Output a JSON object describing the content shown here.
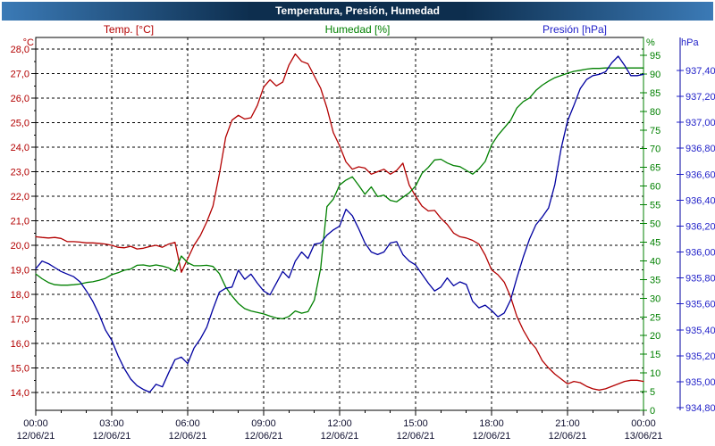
{
  "window": {
    "title": "Temperatura, Presión, Humedad"
  },
  "legend": {
    "temp": "Temp. [°C]",
    "humidity": "Humedad [%]",
    "pressure": "Presión [hPa]"
  },
  "colors": {
    "temp": "#b30000",
    "humidity": "#008000",
    "pressure": "#0000a0",
    "titlebar_edge": "#3b7ab6",
    "titlebar_center": "#0d2e4e",
    "window_border": "#2e669f",
    "grid": "#000000"
  },
  "chart_data": {
    "type": "line",
    "title": "Temperatura, Presión, Humedad",
    "grid": {
      "horizontal": "temperature 1°C steps",
      "vertical": "every 3 hours",
      "style": "dashed"
    },
    "x_axis": {
      "start_hour": 0,
      "end_hour": 24,
      "major_tick_every_hours": 3,
      "minor_tick_every_hours": 1,
      "ticks": [
        {
          "time": "00:00",
          "date": "12/06/21"
        },
        {
          "time": "03:00",
          "date": "12/06/21"
        },
        {
          "time": "06:00",
          "date": "12/06/21"
        },
        {
          "time": "09:00",
          "date": "12/06/21"
        },
        {
          "time": "12:00",
          "date": "12/06/21"
        },
        {
          "time": "15:00",
          "date": "12/06/21"
        },
        {
          "time": "18:00",
          "date": "12/06/21"
        },
        {
          "time": "21:00",
          "date": "12/06/21"
        },
        {
          "time": "00:00",
          "date": "13/06/21"
        }
      ]
    },
    "y_axes": [
      {
        "id": "temp",
        "unit": "°C",
        "side": "left",
        "color": "#b30000",
        "decimals": 1,
        "decimal_separator": ",",
        "ticks": [
          28,
          27,
          26,
          25,
          24,
          23,
          22,
          21,
          20,
          19,
          18,
          17,
          16,
          15,
          14
        ],
        "minor_tick_step": 0.5
      },
      {
        "id": "humidity",
        "unit": "%",
        "side": "right",
        "color": "#008000",
        "decimals": 0,
        "decimal_separator": ",",
        "ticks": [
          95,
          90,
          85,
          80,
          75,
          70,
          65,
          60,
          55,
          50,
          45,
          40,
          35,
          30,
          25,
          20,
          15,
          10,
          5,
          0
        ]
      },
      {
        "id": "pressure",
        "unit": "hPa",
        "side": "right-outer",
        "color": "#1f1fc8",
        "decimals": 2,
        "decimal_separator": ",",
        "ticks": [
          937.4,
          937.2,
          937.0,
          936.8,
          936.6,
          936.4,
          936.2,
          936.0,
          935.8,
          935.6,
          935.4,
          935.2,
          935.0,
          934.8
        ]
      }
    ],
    "series": [
      {
        "name": "Temp. [°C]",
        "axis": "temp",
        "color": "#b30000",
        "x_start_hour": 0,
        "x_step_hours": 0.25,
        "values": [
          20.35,
          20.32,
          20.3,
          20.32,
          20.28,
          20.15,
          20.15,
          20.13,
          20.1,
          20.1,
          20.08,
          20.05,
          20.0,
          19.92,
          19.9,
          19.96,
          19.85,
          19.88,
          19.95,
          20.0,
          19.92,
          20.05,
          20.12,
          18.9,
          19.45,
          20.0,
          20.4,
          20.95,
          21.6,
          22.9,
          24.4,
          25.1,
          25.3,
          25.15,
          25.2,
          25.7,
          26.45,
          26.75,
          26.5,
          26.65,
          27.35,
          27.8,
          27.5,
          27.4,
          26.9,
          26.4,
          25.6,
          24.6,
          24.05,
          23.4,
          23.1,
          23.2,
          23.15,
          22.9,
          23.0,
          23.1,
          22.9,
          23.05,
          23.35,
          22.45,
          22.0,
          21.6,
          21.4,
          21.42,
          21.1,
          20.85,
          20.5,
          20.35,
          20.3,
          20.2,
          20.05,
          19.6,
          19.0,
          18.8,
          18.5,
          17.9,
          17.1,
          16.55,
          16.1,
          15.8,
          15.3,
          15.0,
          14.75,
          14.55,
          14.35,
          14.45,
          14.4,
          14.25,
          14.15,
          14.1,
          14.15,
          14.25,
          14.35,
          14.45,
          14.5,
          14.5,
          14.45
        ]
      },
      {
        "name": "Humedad [%]",
        "axis": "humidity",
        "color": "#008000",
        "x_start_hour": 0,
        "x_step_hours": 0.25,
        "values": [
          36.5,
          35.2,
          34.2,
          33.6,
          33.5,
          33.5,
          33.6,
          33.8,
          34.2,
          34.4,
          34.8,
          35.3,
          36.3,
          36.8,
          37.5,
          37.8,
          38.8,
          38.9,
          38.6,
          38.9,
          38.6,
          38.1,
          37.2,
          41.3,
          39.5,
          38.7,
          38.7,
          38.8,
          38.5,
          36.6,
          33.0,
          30.6,
          28.6,
          27.2,
          26.6,
          26.2,
          25.8,
          25.2,
          24.7,
          24.5,
          25.1,
          26.6,
          26.0,
          26.4,
          29.5,
          38.0,
          54.5,
          56.5,
          60.3,
          61.6,
          62.5,
          60.2,
          57.8,
          59.8,
          57.2,
          57.6,
          56.2,
          55.8,
          57.0,
          58.2,
          60.0,
          63.4,
          65.0,
          67.0,
          67.2,
          66.2,
          65.5,
          65.2,
          64.2,
          63.2,
          64.6,
          66.6,
          71.0,
          73.6,
          75.6,
          77.6,
          80.9,
          82.6,
          83.6,
          85.6,
          87.0,
          88.1,
          89.0,
          89.6,
          90.2,
          90.7,
          91.0,
          91.3,
          91.5,
          91.5,
          91.6,
          91.6,
          91.6,
          91.6,
          91.6,
          91.6,
          91.6
        ]
      },
      {
        "name": "Presión [hPa]",
        "axis": "pressure",
        "color": "#0000a0",
        "x_start_hour": 0,
        "x_step_hours": 0.25,
        "values": [
          935.87,
          935.93,
          935.91,
          935.88,
          935.85,
          935.83,
          935.81,
          935.77,
          935.7,
          935.62,
          935.52,
          935.4,
          935.32,
          935.2,
          935.1,
          935.02,
          934.97,
          934.94,
          934.92,
          934.98,
          934.96,
          935.07,
          935.17,
          935.19,
          935.14,
          935.26,
          935.33,
          935.42,
          935.56,
          935.69,
          935.72,
          935.73,
          935.86,
          935.79,
          935.83,
          935.76,
          935.7,
          935.67,
          935.76,
          935.85,
          935.8,
          935.93,
          936.0,
          935.95,
          936.06,
          936.07,
          936.13,
          936.17,
          936.2,
          936.33,
          936.28,
          936.18,
          936.07,
          936.0,
          935.98,
          936.0,
          936.07,
          936.08,
          935.98,
          935.93,
          935.9,
          935.83,
          935.76,
          935.7,
          935.73,
          935.8,
          935.74,
          935.77,
          935.75,
          935.62,
          935.57,
          935.59,
          935.55,
          935.5,
          935.53,
          935.63,
          935.8,
          935.96,
          936.1,
          936.21,
          936.27,
          936.34,
          936.52,
          936.8,
          937.01,
          937.13,
          937.26,
          937.33,
          937.36,
          937.37,
          937.39,
          937.46,
          937.51,
          937.44,
          937.36,
          937.36,
          937.37
        ]
      }
    ]
  }
}
